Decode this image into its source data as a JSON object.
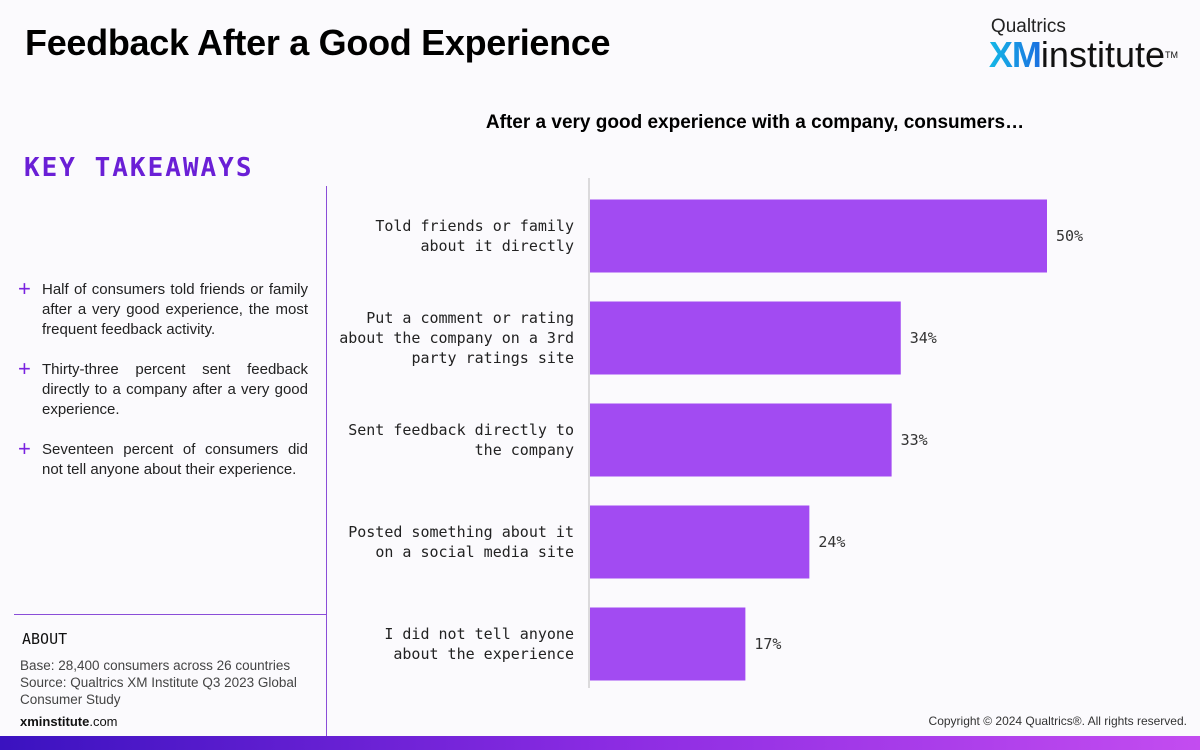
{
  "header": {
    "title": "Feedback After a Good Experience",
    "logo_top": "Qualtrics",
    "logo_xm": "XM",
    "logo_word": "institute",
    "logo_tm": "TM"
  },
  "takeaways": {
    "heading": "KEY TAKEAWAYS",
    "plus_glyph": "+",
    "items": [
      "Half of consumers told friends or family after a very good experience, the most frequent feedback activity.",
      "Thirty-three percent sent feedback directly to a company after a very good experience.",
      "Seventeen percent of consumers did not tell anyone about their experience."
    ]
  },
  "about": {
    "heading": "ABOUT",
    "base": "Base: 28,400 consumers across 26 countries",
    "source": "Source: Qualtrics XM Institute Q3 2023 Global Consumer Study",
    "site_bold": "xminstitute",
    "site_rest": ".com"
  },
  "footer": {
    "copyright": "Copyright © 2024 Qualtrics®. All rights reserved."
  },
  "colors": {
    "bar": "#a24bf2",
    "accent": "#6a1fd6",
    "axis": "#bbbbbb"
  },
  "chart_data": {
    "type": "bar",
    "orientation": "horizontal",
    "title": "After a very good experience with a company, consumers…",
    "categories": [
      [
        "Told friends or family",
        "about it directly"
      ],
      [
        "Put a comment or rating",
        "about the company on a 3rd",
        "party ratings site"
      ],
      [
        "Sent feedback directly to",
        "the company"
      ],
      [
        "Posted something about it",
        "on a social media site"
      ],
      [
        "I did not tell anyone",
        "about the experience"
      ]
    ],
    "values": [
      50,
      34,
      33,
      24,
      17
    ],
    "value_labels": [
      "50%",
      "34%",
      "33%",
      "24%",
      "17%"
    ],
    "xlim": [
      0,
      100
    ],
    "xlabel": "",
    "ylabel": "",
    "grid": false,
    "legend": "none"
  }
}
